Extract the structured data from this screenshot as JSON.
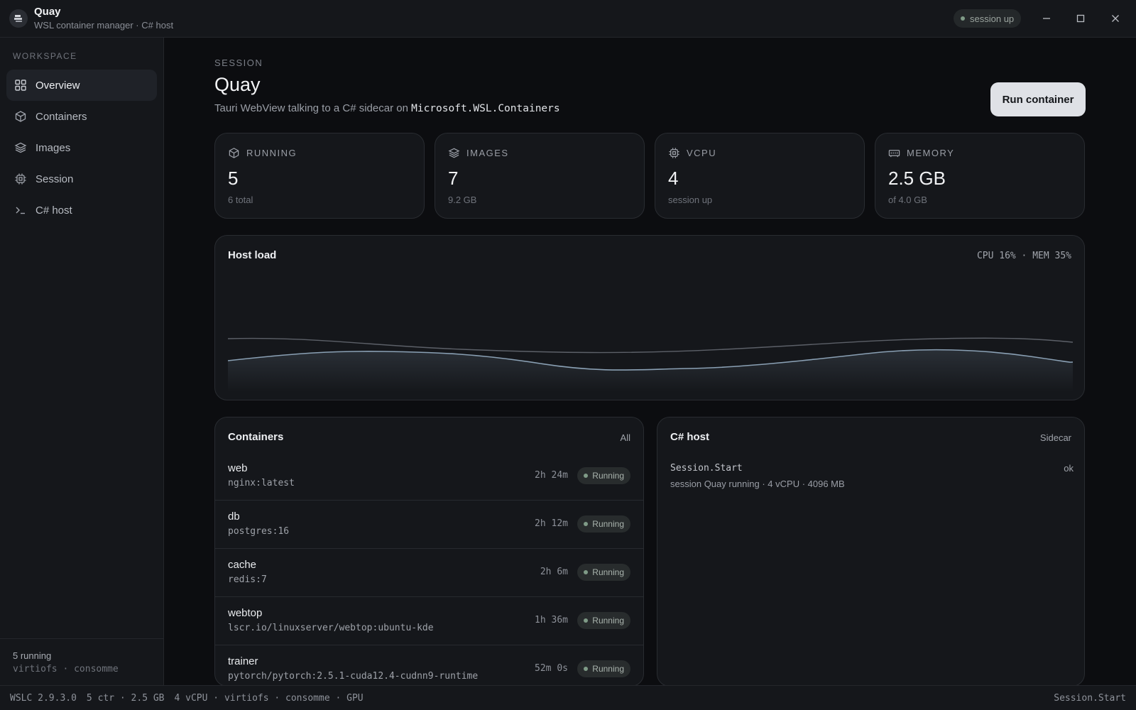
{
  "app": {
    "name": "Quay",
    "subtitle": "WSL container manager · C# host",
    "session_pill": "session up",
    "logo_icon": "whale-icon"
  },
  "window_controls": [
    "minimize-icon",
    "maximize-icon",
    "close-icon"
  ],
  "sidebar": {
    "section": "WORKSPACE",
    "items": [
      {
        "label": "Overview",
        "icon": "grid-icon",
        "active": true
      },
      {
        "label": "Containers",
        "icon": "box-icon"
      },
      {
        "label": "Images",
        "icon": "layers-icon"
      },
      {
        "label": "Session",
        "icon": "cpu-icon"
      },
      {
        "label": "C# host",
        "icon": "terminal-icon"
      }
    ],
    "footer_line1": "5 running",
    "footer_line2": "virtiofs · consomme"
  },
  "header": {
    "eyebrow": "SESSION",
    "title": "Quay",
    "subtitle_prefix": "Tauri WebView talking to a C# sidecar on",
    "subtitle_code": "Microsoft.WSL.Containers",
    "primary_button": "Run container"
  },
  "stats": [
    {
      "label": "RUNNING",
      "value": "5",
      "note": "6 total",
      "icon": "box-icon"
    },
    {
      "label": "IMAGES",
      "value": "7",
      "note": "9.2 GB",
      "icon": "layers-icon"
    },
    {
      "label": "VCPU",
      "value": "4",
      "note": "session up",
      "icon": "cpu-icon"
    },
    {
      "label": "MEMORY",
      "value": "2.5 GB",
      "note": "of 4.0 GB",
      "icon": "memory-icon"
    }
  ],
  "host_load": {
    "title": "Host load",
    "readout": "CPU 16% · MEM 35%",
    "colors": {
      "cpu": "#8aa0b4",
      "mem": "#5c6068"
    }
  },
  "containers": {
    "title": "Containers",
    "link": "All",
    "rows": [
      {
        "name": "web",
        "image": "nginx:latest",
        "uptime": "2h 24m",
        "status": "Running"
      },
      {
        "name": "db",
        "image": "postgres:16",
        "uptime": "2h 12m",
        "status": "Running"
      },
      {
        "name": "cache",
        "image": "redis:7",
        "uptime": "2h 6m",
        "status": "Running"
      },
      {
        "name": "webtop",
        "image": "lscr.io/linuxserver/webtop:ubuntu-kde",
        "uptime": "1h 36m",
        "status": "Running"
      },
      {
        "name": "trainer",
        "image": "pytorch/pytorch:2.5.1-cuda12.4-cudnn9-runtime",
        "uptime": "52m 0s",
        "status": "Running"
      }
    ]
  },
  "csharp_host": {
    "title": "C# host",
    "link": "Sidecar",
    "entries": [
      {
        "command": "Session.Start",
        "status": "ok",
        "message": "session Quay running · 4 vCPU · 4096 MB"
      }
    ]
  },
  "statusbar": {
    "items": [
      "WSLC 2.9.3.0",
      "5 ctr · 2.5 GB",
      "4 vCPU · virtiofs · consomme · GPU"
    ],
    "right": "Session.Start"
  }
}
